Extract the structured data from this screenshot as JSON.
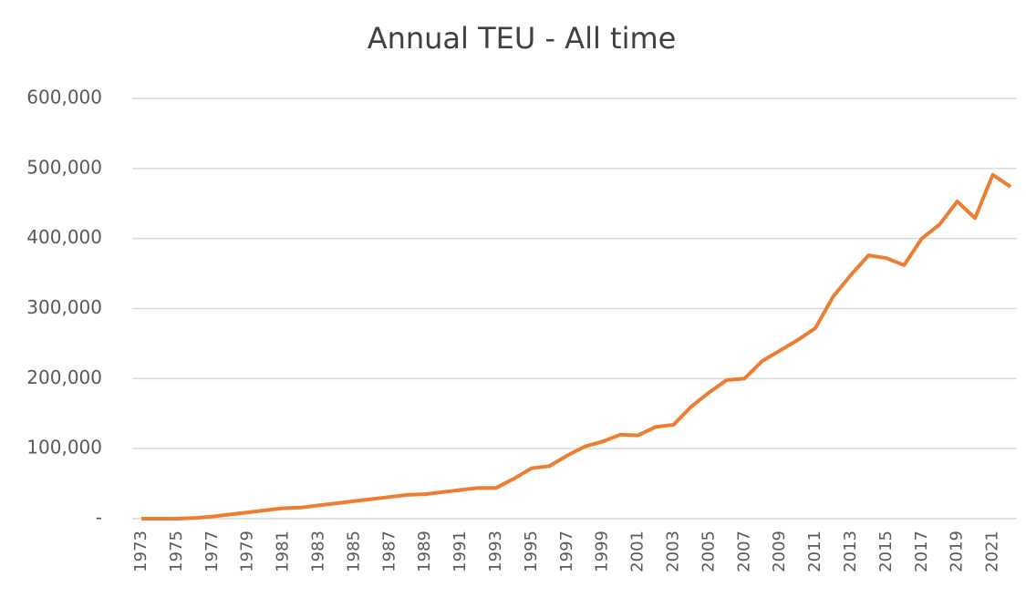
{
  "chart_data": {
    "type": "line",
    "title": "Annual TEU - All time",
    "x": [
      1973,
      1974,
      1975,
      1976,
      1977,
      1978,
      1979,
      1980,
      1981,
      1982,
      1983,
      1984,
      1985,
      1986,
      1987,
      1988,
      1989,
      1990,
      1991,
      1992,
      1993,
      1994,
      1995,
      1996,
      1997,
      1998,
      1999,
      2000,
      2001,
      2002,
      2003,
      2004,
      2005,
      2006,
      2007,
      2008,
      2009,
      2010,
      2011,
      2012,
      2013,
      2014,
      2015,
      2016,
      2017,
      2018,
      2019,
      2020,
      2021,
      2022
    ],
    "series": [
      {
        "name": "Annual TEU",
        "color": "#ed7d31",
        "values": [
          0,
          0,
          0,
          1000,
          3000,
          6000,
          9000,
          12000,
          15000,
          16000,
          19000,
          22000,
          25000,
          28000,
          31000,
          34000,
          35000,
          38000,
          41000,
          44000,
          44000,
          57000,
          72000,
          75000,
          90000,
          103000,
          110000,
          120000,
          119000,
          131000,
          134000,
          160000,
          180000,
          198000,
          200000,
          225000,
          240000,
          255000,
          272000,
          317000,
          348000,
          376000,
          372000,
          362000,
          400000,
          420000,
          453000,
          429000,
          491000,
          474000
        ]
      }
    ],
    "xlim": [
      1973,
      2022
    ],
    "xticks": [
      1973,
      1975,
      1977,
      1979,
      1981,
      1983,
      1985,
      1987,
      1989,
      1991,
      1993,
      1995,
      1997,
      1999,
      2001,
      2003,
      2005,
      2007,
      2009,
      2011,
      2013,
      2015,
      2017,
      2019,
      2021
    ],
    "ylim": [
      0,
      600000
    ],
    "yticks": [
      {
        "value": 0,
        "label": "-"
      },
      {
        "value": 100000,
        "label": "100,000"
      },
      {
        "value": 200000,
        "label": "200,000"
      },
      {
        "value": 300000,
        "label": "300,000"
      },
      {
        "value": 400000,
        "label": "400,000"
      },
      {
        "value": 500000,
        "label": "500,000"
      },
      {
        "value": 600000,
        "label": "600,000"
      }
    ],
    "grid": true
  }
}
